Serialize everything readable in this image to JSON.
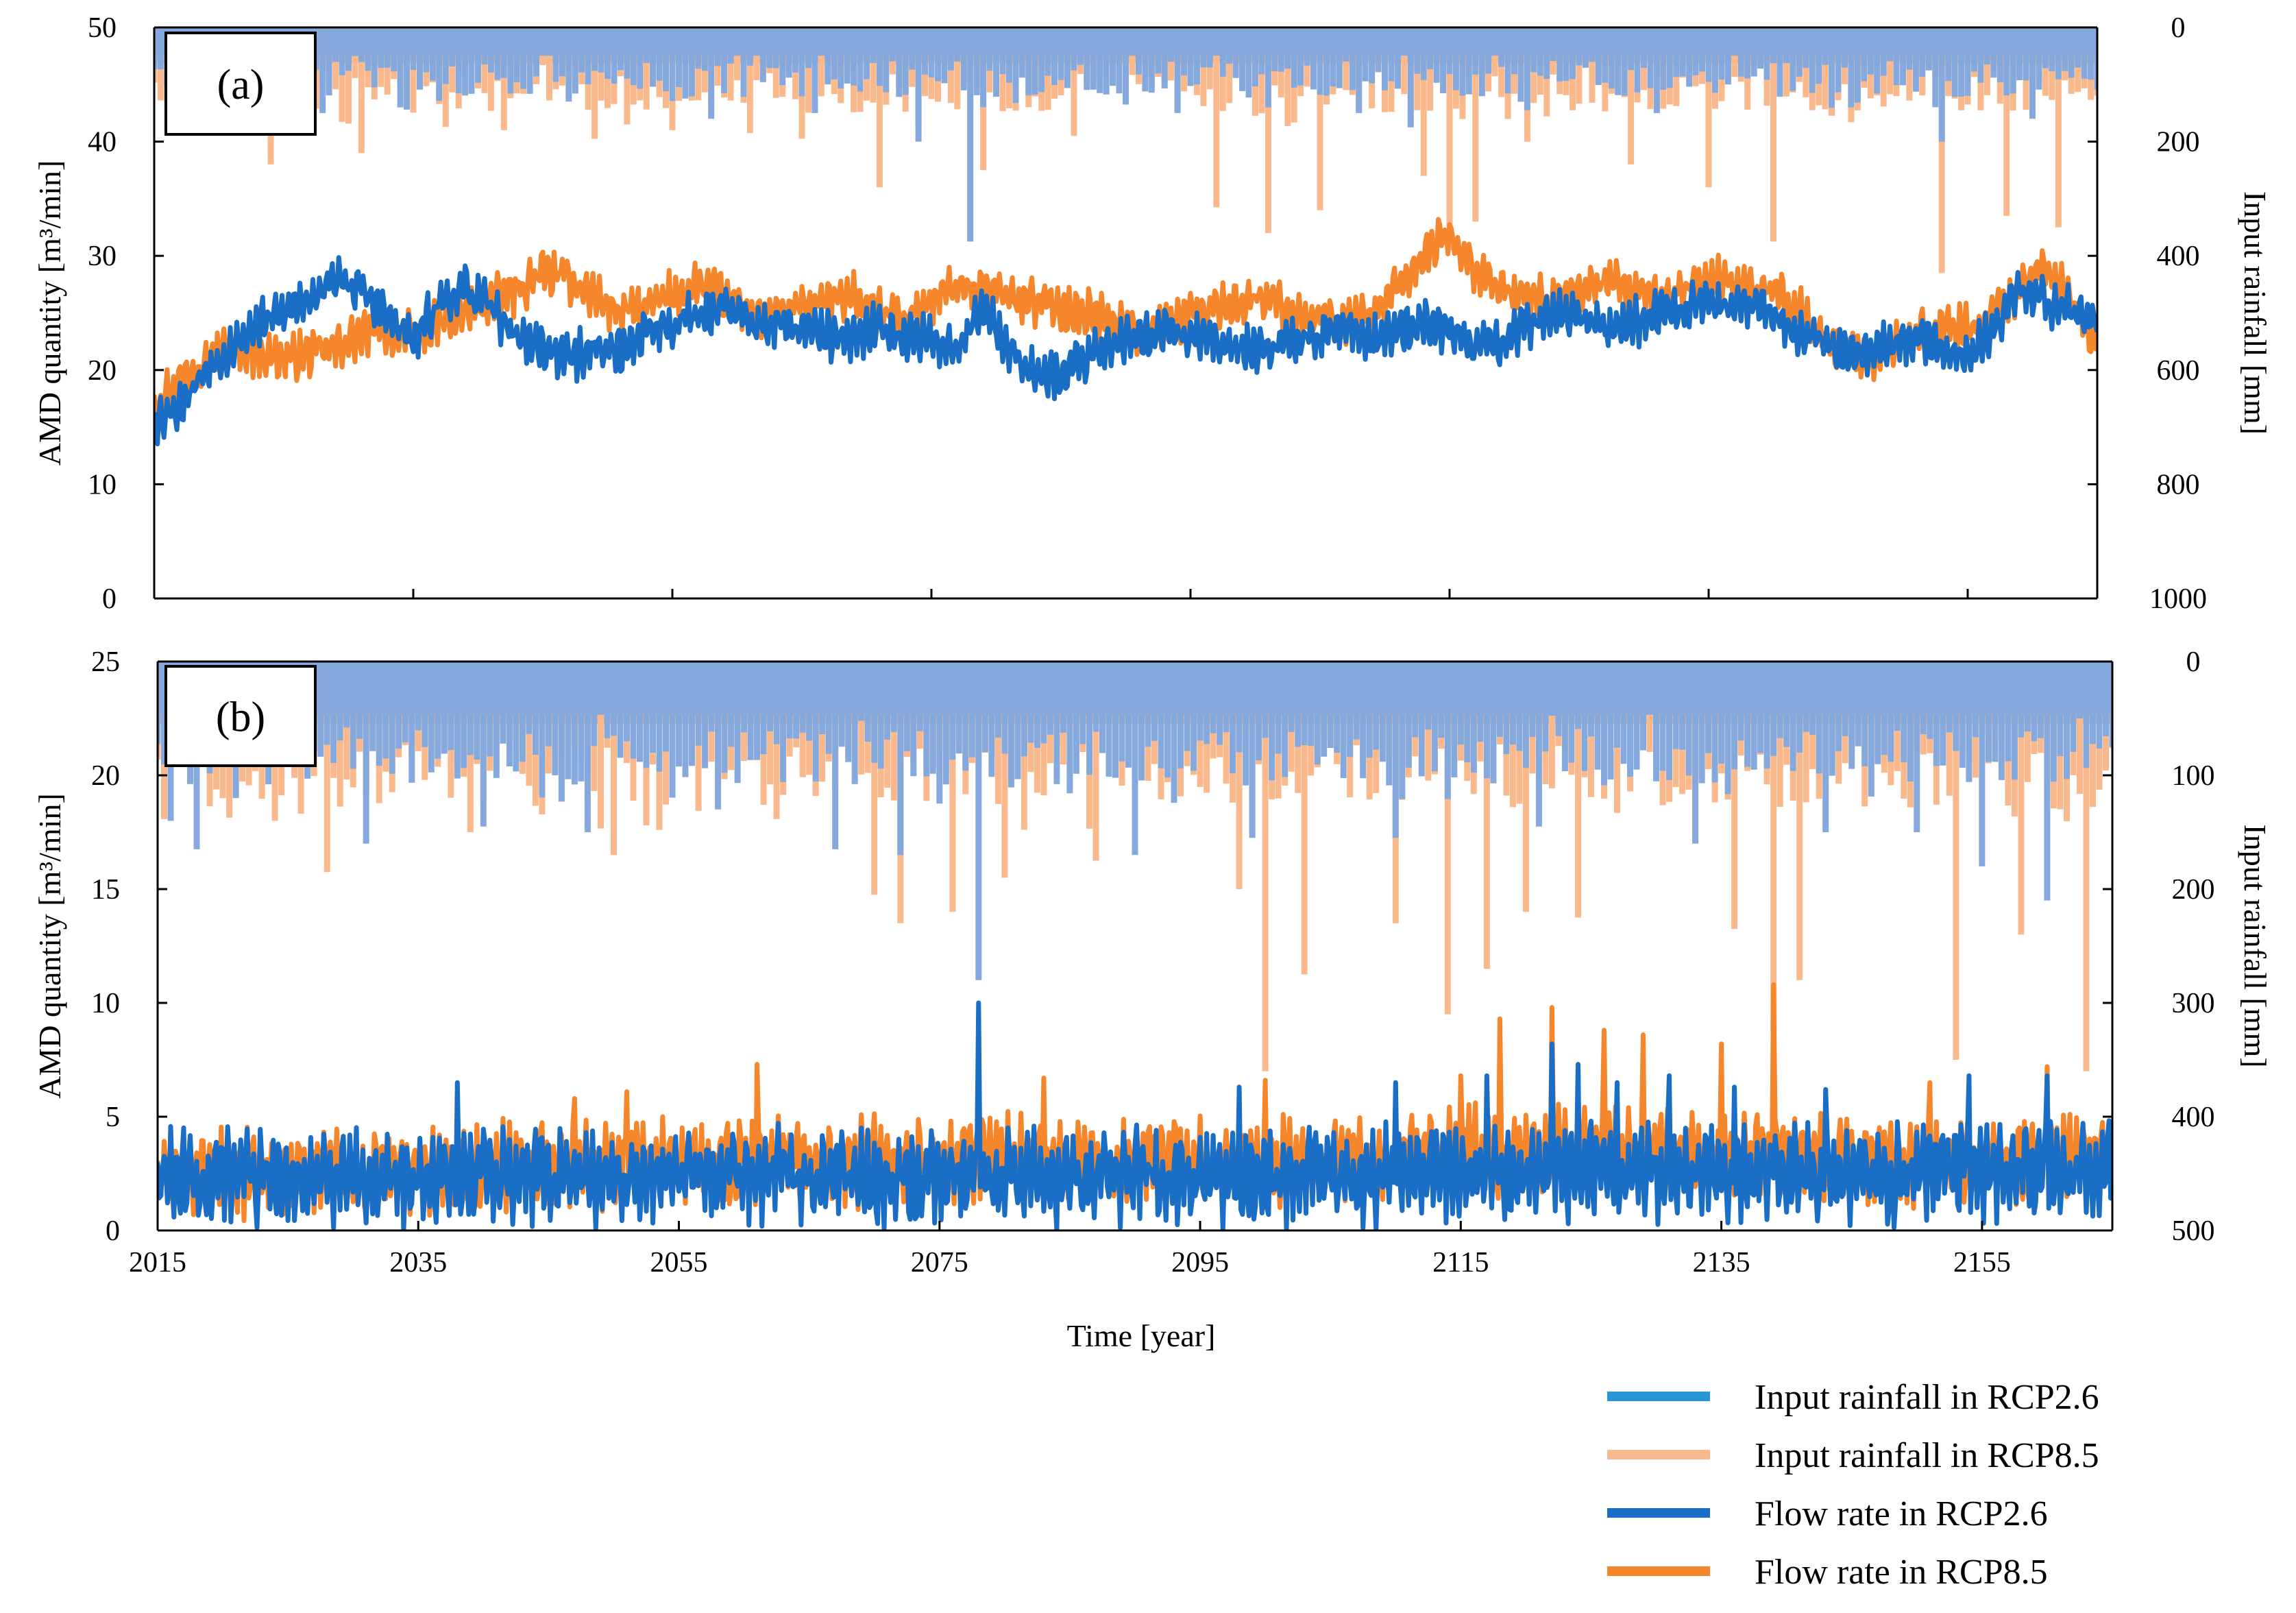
{
  "figure": {
    "xlabel": "Time [year]",
    "colors": {
      "rain_rcp26": "#85a9dd",
      "rain_rcp85": "#f9b98c",
      "flow_rcp26": "#1a6ec5",
      "flow_rcp85": "#f5862c",
      "legend_rain_rcp26": "#2796d6"
    }
  },
  "legend": [
    {
      "label": "Input rainfall  in RCP2.6",
      "color": "#2796d6"
    },
    {
      "label": "Input rainfall  in RCP8.5",
      "color": "#f9b98c"
    },
    {
      "label": "Flow rate in RCP2.6",
      "color": "#1a6ec5"
    },
    {
      "label": "Flow rate in RCP8.5",
      "color": "#f5862c"
    }
  ],
  "chart_data": [
    {
      "panel": "(a)",
      "type": "line",
      "title": "",
      "xlabel": "Time [year]",
      "ylabel": "AMD quantity [m³/min]",
      "y2label": "Input rainfall [mm]",
      "xlim": [
        2015,
        2165
      ],
      "ylim": [
        0,
        50
      ],
      "y2lim": [
        0,
        1000
      ],
      "y2_inverted": true,
      "x_ticks": [
        "2015",
        "2035",
        "2055",
        "2075",
        "2095",
        "2115",
        "2135",
        "2155"
      ],
      "y_ticks": [
        "0",
        "10",
        "20",
        "30",
        "40",
        "50"
      ],
      "y2_ticks": [
        "0",
        "200",
        "400",
        "600",
        "800",
        "1000"
      ],
      "series": [
        {
          "name": "Flow rate in RCP2.6",
          "kind": "flow",
          "x": [
            2015,
            2017,
            2019,
            2021,
            2023,
            2025,
            2027,
            2029,
            2031,
            2033,
            2035,
            2037,
            2039,
            2041,
            2043,
            2045,
            2047,
            2049,
            2051,
            2053,
            2055,
            2057,
            2059,
            2061,
            2063,
            2065,
            2067,
            2069,
            2071,
            2073,
            2075,
            2077,
            2079,
            2081,
            2083,
            2085,
            2087,
            2089,
            2091,
            2093,
            2095,
            2097,
            2099,
            2101,
            2103,
            2105,
            2107,
            2109,
            2111,
            2113,
            2115,
            2117,
            2119,
            2121,
            2123,
            2125,
            2127,
            2129,
            2131,
            2133,
            2135,
            2137,
            2139,
            2141,
            2143,
            2145,
            2147,
            2149,
            2151,
            2153,
            2155,
            2157,
            2159,
            2161,
            2163,
            2165
          ],
          "values": [
            15.5,
            17,
            20,
            22,
            24,
            25,
            26.5,
            28,
            27,
            24.5,
            22.5,
            26,
            27,
            25.5,
            23,
            22,
            21,
            22,
            21.5,
            23.5,
            24,
            25,
            25.5,
            24,
            24,
            23.5,
            23,
            22.5,
            24,
            23,
            22.5,
            22,
            25.5,
            22,
            20,
            19.5,
            21,
            22.5,
            23,
            23.5,
            23,
            22.5,
            22,
            22,
            22.5,
            23,
            24,
            22.5,
            23.5,
            24,
            23.5,
            22,
            22.5,
            24,
            25,
            24.5,
            23.5,
            24,
            25,
            25.5,
            26,
            25.5,
            26,
            24,
            23,
            22,
            21.5,
            22,
            23,
            22,
            21,
            23.5,
            27,
            26,
            25,
            24.5
          ],
          "spread": 2.4
        },
        {
          "name": "Flow rate in RCP8.5",
          "kind": "flow",
          "x": [
            2015,
            2017,
            2019,
            2021,
            2023,
            2025,
            2027,
            2029,
            2031,
            2033,
            2035,
            2037,
            2039,
            2041,
            2043,
            2045,
            2047,
            2049,
            2051,
            2053,
            2055,
            2057,
            2059,
            2061,
            2063,
            2065,
            2067,
            2069,
            2071,
            2073,
            2075,
            2077,
            2079,
            2081,
            2083,
            2085,
            2087,
            2089,
            2091,
            2093,
            2095,
            2097,
            2099,
            2101,
            2103,
            2105,
            2107,
            2109,
            2111,
            2113,
            2115,
            2117,
            2119,
            2121,
            2123,
            2125,
            2127,
            2129,
            2131,
            2133,
            2135,
            2137,
            2139,
            2141,
            2143,
            2145,
            2147,
            2149,
            2151,
            2153,
            2155,
            2157,
            2159,
            2161,
            2163,
            2165
          ],
          "values": [
            17,
            19,
            21,
            22,
            21.5,
            21,
            21.5,
            22,
            23,
            23.5,
            23,
            24,
            25,
            26,
            27,
            28.5,
            28,
            26.5,
            25,
            25.5,
            26.5,
            27.5,
            26.5,
            25,
            25,
            25.5,
            26,
            26.5,
            25,
            24.5,
            26,
            27.5,
            27,
            26.5,
            26,
            25.5,
            25,
            24,
            23.5,
            24,
            25,
            25.5,
            26,
            26.5,
            25,
            24.5,
            24,
            25,
            27,
            30,
            32,
            29,
            27,
            26.5,
            26,
            27,
            27.5,
            27,
            26,
            27,
            28,
            27.5,
            27,
            26,
            24,
            22,
            21,
            22,
            23,
            24,
            23.5,
            25,
            27,
            29,
            26,
            22
          ],
          "spread": 2.4
        },
        {
          "name": "Input rainfall  in RCP2.6",
          "kind": "rain",
          "stride": 0.5,
          "base": 90,
          "amp": 40,
          "seed": 11,
          "spikes": [
            [
              2028,
              150
            ],
            [
              2034,
              140
            ],
            [
              2047,
              130
            ],
            [
              2058,
              160
            ],
            [
              2066,
              150
            ],
            [
              2074,
              200
            ],
            [
              2078,
              375
            ],
            [
              2090,
              135
            ],
            [
              2094,
              150
            ],
            [
              2101,
              140
            ],
            [
              2108,
              150
            ],
            [
              2112,
              175
            ],
            [
              2121,
              145
            ],
            [
              2131,
              150
            ],
            [
              2146,
              140
            ],
            [
              2153,
              200
            ],
            [
              2160,
              160
            ]
          ]
        },
        {
          "name": "Input rainfall  in RCP8.5",
          "kind": "rain",
          "stride": 0.5,
          "base": 115,
          "amp": 45,
          "seed": 29,
          "spikes": [
            [
              2020,
              180
            ],
            [
              2024,
              240
            ],
            [
              2031,
              220
            ],
            [
              2042,
              180
            ],
            [
              2049,
              195
            ],
            [
              2055,
              180
            ],
            [
              2061,
              185
            ],
            [
              2065,
              195
            ],
            [
              2071,
              280
            ],
            [
              2079,
              250
            ],
            [
              2086,
              190
            ],
            [
              2097,
              315
            ],
            [
              2101,
              360
            ],
            [
              2105,
              320
            ],
            [
              2113,
              260
            ],
            [
              2115,
              390
            ],
            [
              2117,
              340
            ],
            [
              2121,
              200
            ],
            [
              2129,
              240
            ],
            [
              2135,
              280
            ],
            [
              2140,
              375
            ],
            [
              2153,
              430
            ],
            [
              2158,
              330
            ],
            [
              2162,
              350
            ]
          ]
        }
      ]
    },
    {
      "panel": "(b)",
      "type": "line",
      "title": "",
      "xlabel": "Time [year]",
      "ylabel": "AMD quantity [m³/min]",
      "y2label": "Input rainfall [mm]",
      "xlim": [
        2015,
        2165
      ],
      "ylim": [
        0,
        25
      ],
      "y2lim": [
        0,
        500
      ],
      "y2_inverted": true,
      "x_ticks": [
        "2015",
        "2035",
        "2055",
        "2075",
        "2095",
        "2115",
        "2135",
        "2155"
      ],
      "y_ticks": [
        "0",
        "5",
        "10",
        "15",
        "20",
        "25"
      ],
      "y2_ticks": [
        "0",
        "100",
        "200",
        "300",
        "400",
        "500"
      ],
      "series": [
        {
          "name": "Flow rate in RCP2.6",
          "kind": "flow",
          "x": [
            2015,
            2020,
            2025,
            2030,
            2035,
            2040,
            2045,
            2050,
            2055,
            2060,
            2065,
            2070,
            2075,
            2080,
            2085,
            2090,
            2095,
            2100,
            2105,
            2110,
            2115,
            2120,
            2125,
            2130,
            2135,
            2140,
            2145,
            2150,
            2155,
            2160,
            2165
          ],
          "values": [
            2.2,
            2.5,
            2.4,
            2.3,
            2.2,
            2.5,
            2.4,
            2.3,
            2.4,
            2.5,
            2.3,
            2.2,
            2.2,
            2.3,
            2.2,
            2.4,
            2.3,
            2.3,
            2.4,
            2.4,
            2.5,
            2.6,
            2.7,
            2.6,
            2.5,
            2.6,
            2.4,
            2.5,
            2.6,
            2.7,
            2.6
          ],
          "spread": 2.4,
          "spikes": [
            [
              2038,
              6.5
            ],
            [
              2078,
              10
            ],
            [
              2098,
              6.3
            ],
            [
              2110,
              6.5
            ],
            [
              2117,
              6.8
            ],
            [
              2122,
              8.2
            ],
            [
              2124,
              7.3
            ],
            [
              2127,
              6.5
            ],
            [
              2131,
              6.8
            ],
            [
              2136,
              6.3
            ],
            [
              2143,
              6.2
            ],
            [
              2154,
              6.8
            ],
            [
              2160,
              6.8
            ]
          ]
        },
        {
          "name": "Flow rate in RCP8.5",
          "kind": "flow",
          "x": [
            2015,
            2020,
            2025,
            2030,
            2035,
            2040,
            2045,
            2050,
            2055,
            2060,
            2065,
            2070,
            2075,
            2080,
            2085,
            2090,
            2095,
            2100,
            2105,
            2110,
            2115,
            2120,
            2125,
            2130,
            2135,
            2140,
            2145,
            2150,
            2155,
            2160,
            2165
          ],
          "values": [
            2.3,
            2.6,
            2.4,
            2.5,
            2.6,
            2.7,
            2.8,
            2.9,
            2.9,
            3.1,
            2.9,
            3,
            3,
            3.2,
            3.1,
            3,
            2.9,
            3,
            3,
            3.1,
            3.4,
            3.5,
            3.5,
            3.4,
            3.3,
            3.5,
            3,
            3.1,
            3.2,
            3.3,
            3.1
          ],
          "spread": 2.2,
          "spikes": [
            [
              2047,
              5.8
            ],
            [
              2051,
              6.1
            ],
            [
              2061,
              7.3
            ],
            [
              2083,
              6.7
            ],
            [
              2100,
              6.6
            ],
            [
              2115,
              6.8
            ],
            [
              2118,
              9.3
            ],
            [
              2122,
              9.8
            ],
            [
              2126,
              8.8
            ],
            [
              2129,
              8.6
            ],
            [
              2135,
              8.2
            ],
            [
              2139,
              10.8
            ],
            [
              2151,
              6.5
            ],
            [
              2160,
              7.2
            ]
          ]
        },
        {
          "name": "Input rainfall  in RCP2.6",
          "kind": "rain",
          "stride": 0.5,
          "base": 85,
          "amp": 30,
          "seed": 7,
          "spikes": [
            [
              2016,
              140
            ],
            [
              2018,
              165
            ],
            [
              2021,
              120
            ],
            [
              2031,
              160
            ],
            [
              2040,
              145
            ],
            [
              2048,
              150
            ],
            [
              2058,
              130
            ],
            [
              2067,
              165
            ],
            [
              2072,
              170
            ],
            [
              2078,
              280
            ],
            [
              2090,
              170
            ],
            [
              2099,
              155
            ],
            [
              2110,
              155
            ],
            [
              2121,
              145
            ],
            [
              2133,
              160
            ],
            [
              2143,
              150
            ],
            [
              2150,
              150
            ],
            [
              2155,
              180
            ],
            [
              2160,
              210
            ]
          ]
        },
        {
          "name": "Input rainfall  in RCP8.5",
          "kind": "rain",
          "stride": 0.5,
          "base": 100,
          "amp": 35,
          "seed": 41,
          "spikes": [
            [
              2024,
              140
            ],
            [
              2028,
              185
            ],
            [
              2039,
              150
            ],
            [
              2050,
              170
            ],
            [
              2070,
              205
            ],
            [
              2072,
              230
            ],
            [
              2076,
              220
            ],
            [
              2080,
              190
            ],
            [
              2087,
              175
            ],
            [
              2098,
              200
            ],
            [
              2100,
              360
            ],
            [
              2103,
              275
            ],
            [
              2110,
              230
            ],
            [
              2114,
              310
            ],
            [
              2117,
              270
            ],
            [
              2120,
              220
            ],
            [
              2124,
              225
            ],
            [
              2136,
              235
            ],
            [
              2139,
              325
            ],
            [
              2141,
              280
            ],
            [
              2153,
              350
            ],
            [
              2158,
              240
            ],
            [
              2163,
              360
            ]
          ]
        }
      ]
    }
  ]
}
